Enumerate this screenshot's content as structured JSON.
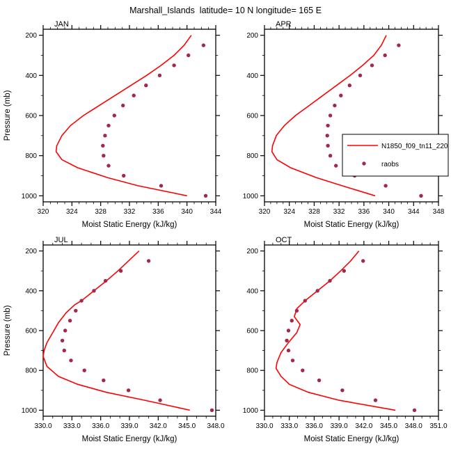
{
  "title": "Marshall_Islands  latitude= 10 N longitude= 165 E",
  "chart_data": {
    "type": "line",
    "title": "Marshall_Islands  latitude= 10 N longitude= 165 E",
    "xlabel": "Moist Static Energy (kJ/kg)",
    "ylabel": "Pressure (mb)",
    "grid": false,
    "y_axis": {
      "ticks": [
        200,
        400,
        600,
        800,
        1000
      ],
      "minor_step": 100,
      "range": [
        170,
        1030
      ],
      "orientation": "pressure increases downward"
    },
    "colors": {
      "model_line": "#ff0000",
      "obs_dot": "#a1294b",
      "axis": "#000000"
    },
    "series": [
      {
        "name": "N1850_f09_tn11_220",
        "type": "line"
      },
      {
        "name": "raobs",
        "type": "scatter"
      }
    ],
    "legend": [
      {
        "sample": "line",
        "label": "N1850_f09_tn11_220"
      },
      {
        "sample": "dot",
        "label": "raobs"
      }
    ],
    "legend_position": "overlapping right edge of APR panel, clipped at figure edge",
    "panels": [
      {
        "id": "JAN",
        "label": "JAN",
        "xlim": [
          320,
          344
        ],
        "xticks": [
          320,
          324,
          328,
          332,
          336,
          340,
          344
        ],
        "xtick_labels": [
          "320",
          "324",
          "328",
          "332",
          "336",
          "340",
          "344"
        ],
        "line": [
          [
            200,
            340.6
          ],
          [
            250,
            339.6
          ],
          [
            300,
            338.2
          ],
          [
            350,
            336.4
          ],
          [
            400,
            334.4
          ],
          [
            450,
            332.2
          ],
          [
            500,
            330.0
          ],
          [
            550,
            327.8
          ],
          [
            600,
            325.6
          ],
          [
            650,
            323.8
          ],
          [
            700,
            322.6
          ],
          [
            750,
            321.9
          ],
          [
            780,
            321.8
          ],
          [
            820,
            322.6
          ],
          [
            860,
            324.8
          ],
          [
            910,
            329.0
          ],
          [
            950,
            333.2
          ],
          [
            1000,
            340.0
          ]
        ],
        "dots": [
          [
            250,
            342.3
          ],
          [
            300,
            340.2
          ],
          [
            350,
            338.2
          ],
          [
            400,
            336.2
          ],
          [
            450,
            334.3
          ],
          [
            500,
            332.6
          ],
          [
            550,
            331.1
          ],
          [
            600,
            329.9
          ],
          [
            650,
            329.1
          ],
          [
            700,
            328.6
          ],
          [
            750,
            328.3
          ],
          [
            800,
            328.4
          ],
          [
            850,
            329.1
          ],
          [
            900,
            331.2
          ],
          [
            950,
            336.4
          ],
          [
            1000,
            342.6
          ]
        ]
      },
      {
        "id": "APR",
        "label": "APR",
        "xlim": [
          320,
          348
        ],
        "xticks": [
          320,
          324,
          328,
          332,
          336,
          340,
          344,
          348
        ],
        "xtick_labels": [
          "320",
          "324",
          "328",
          "332",
          "336",
          "340",
          "344",
          "348"
        ],
        "line": [
          [
            200,
            339.6
          ],
          [
            250,
            338.8
          ],
          [
            300,
            337.6
          ],
          [
            350,
            335.8
          ],
          [
            400,
            333.8
          ],
          [
            450,
            331.6
          ],
          [
            500,
            329.4
          ],
          [
            550,
            327.2
          ],
          [
            600,
            325.0
          ],
          [
            650,
            323.2
          ],
          [
            700,
            321.9
          ],
          [
            750,
            321.3
          ],
          [
            780,
            321.2
          ],
          [
            820,
            322.0
          ],
          [
            860,
            324.2
          ],
          [
            910,
            328.4
          ],
          [
            950,
            332.5
          ],
          [
            1000,
            337.8
          ]
        ],
        "dots": [
          [
            250,
            341.6
          ],
          [
            300,
            339.4
          ],
          [
            350,
            337.3
          ],
          [
            400,
            335.4
          ],
          [
            450,
            333.7
          ],
          [
            500,
            332.3
          ],
          [
            550,
            331.3
          ],
          [
            600,
            330.6
          ],
          [
            650,
            330.2
          ],
          [
            700,
            330.1
          ],
          [
            750,
            330.2
          ],
          [
            800,
            330.6
          ],
          [
            850,
            331.5
          ],
          [
            900,
            334.5
          ],
          [
            950,
            339.5
          ],
          [
            1000,
            345.2
          ]
        ]
      },
      {
        "id": "JUL",
        "label": "JUL",
        "xlim": [
          330,
          348
        ],
        "xticks": [
          330,
          333,
          336,
          339,
          342,
          345,
          348
        ],
        "xtick_labels": [
          "330.0",
          "333.0",
          "336.0",
          "339.0",
          "342.0",
          "345.0",
          "348.0"
        ],
        "line": [
          [
            200,
            340.0
          ],
          [
            250,
            338.9
          ],
          [
            300,
            337.8
          ],
          [
            350,
            336.6
          ],
          [
            400,
            335.3
          ],
          [
            450,
            334.0
          ],
          [
            470,
            333.3
          ],
          [
            510,
            332.4
          ],
          [
            560,
            331.6
          ],
          [
            610,
            331.0
          ],
          [
            660,
            330.4
          ],
          [
            700,
            330.1
          ],
          [
            730,
            330.0
          ],
          [
            780,
            330.4
          ],
          [
            830,
            331.6
          ],
          [
            870,
            333.6
          ],
          [
            910,
            336.6
          ],
          [
            950,
            340.6
          ],
          [
            1000,
            345.3
          ]
        ],
        "dots": [
          [
            250,
            341.0
          ],
          [
            300,
            338.1
          ],
          [
            350,
            336.5
          ],
          [
            400,
            335.3
          ],
          [
            450,
            334.0
          ],
          [
            500,
            333.4
          ],
          [
            550,
            332.8
          ],
          [
            600,
            332.3
          ],
          [
            650,
            332.0
          ],
          [
            700,
            332.2
          ],
          [
            750,
            332.9
          ],
          [
            800,
            334.3
          ],
          [
            850,
            336.3
          ],
          [
            900,
            338.9
          ],
          [
            950,
            342.2
          ],
          [
            1000,
            347.6
          ]
        ]
      },
      {
        "id": "OCT",
        "label": "OCT",
        "xlim": [
          330,
          351
        ],
        "xticks": [
          330,
          333,
          336,
          339,
          342,
          345,
          348,
          351
        ],
        "xtick_labels": [
          "330.0",
          "333.0",
          "336.0",
          "339.0",
          "342.0",
          "345.0",
          "348.0",
          "351.0"
        ],
        "line": [
          [
            200,
            341.4
          ],
          [
            250,
            340.4
          ],
          [
            300,
            339.2
          ],
          [
            350,
            337.9
          ],
          [
            400,
            336.4
          ],
          [
            450,
            334.9
          ],
          [
            490,
            333.9
          ],
          [
            530,
            333.6
          ],
          [
            570,
            334.3
          ],
          [
            610,
            333.9
          ],
          [
            660,
            332.9
          ],
          [
            710,
            332.0
          ],
          [
            760,
            331.5
          ],
          [
            790,
            331.4
          ],
          [
            830,
            332.0
          ],
          [
            870,
            333.0
          ],
          [
            910,
            335.3
          ],
          [
            950,
            339.0
          ],
          [
            1000,
            345.8
          ]
        ],
        "dots": [
          [
            250,
            341.9
          ],
          [
            300,
            339.6
          ],
          [
            350,
            337.9
          ],
          [
            400,
            336.4
          ],
          [
            450,
            334.9
          ],
          [
            500,
            333.9
          ],
          [
            550,
            333.3
          ],
          [
            600,
            332.9
          ],
          [
            650,
            332.7
          ],
          [
            700,
            332.9
          ],
          [
            750,
            333.4
          ],
          [
            800,
            334.6
          ],
          [
            850,
            336.6
          ],
          [
            900,
            339.4
          ],
          [
            950,
            343.4
          ],
          [
            1000,
            348.1
          ]
        ]
      }
    ]
  }
}
